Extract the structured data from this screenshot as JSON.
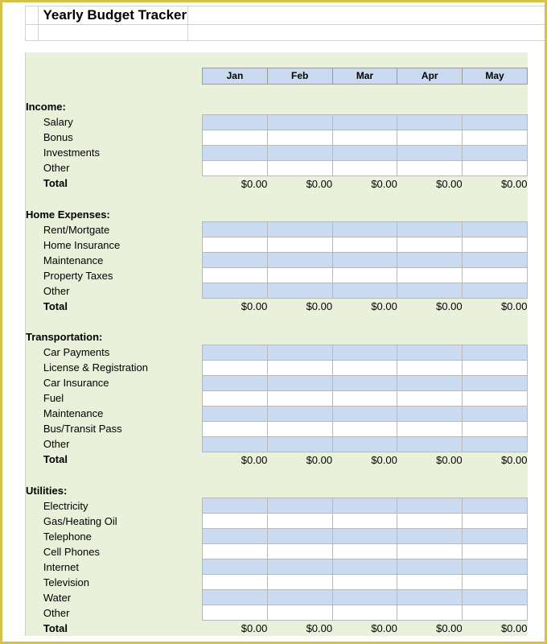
{
  "title": "Yearly Budget Tracker",
  "months": [
    "Jan",
    "Feb",
    "Mar",
    "Apr",
    "May"
  ],
  "colors": {
    "page_border": "#d6c24a",
    "sheet_bg": "#eaf1da",
    "header_cell": "#c9daf1",
    "data_cell_alt": "#c9daf1",
    "data_cell_white": "#ffffff",
    "grid_line": "#b8b8b8"
  },
  "sections": [
    {
      "name": "Income:",
      "rows": [
        "Salary",
        "Bonus",
        "Investments",
        "Other"
      ],
      "total_label": "Total",
      "totals": [
        "$0.00",
        "$0.00",
        "$0.00",
        "$0.00",
        "$0.00"
      ]
    },
    {
      "name": "Home Expenses:",
      "rows": [
        "Rent/Mortgate",
        "Home Insurance",
        "Maintenance",
        "Property Taxes",
        "Other"
      ],
      "total_label": "Total",
      "totals": [
        "$0.00",
        "$0.00",
        "$0.00",
        "$0.00",
        "$0.00"
      ]
    },
    {
      "name": "Transportation:",
      "rows": [
        "Car Payments",
        "License & Registration",
        "Car Insurance",
        "Fuel",
        "Maintenance",
        "Bus/Transit Pass",
        "Other"
      ],
      "total_label": "Total",
      "totals": [
        "$0.00",
        "$0.00",
        "$0.00",
        "$0.00",
        "$0.00"
      ]
    },
    {
      "name": "Utilities:",
      "rows": [
        "Electricity",
        "Gas/Heating Oil",
        "Telephone",
        "Cell Phones",
        "Internet",
        "Television",
        "Water",
        "Other"
      ],
      "total_label": "Total",
      "totals": [
        "$0.00",
        "$0.00",
        "$0.00",
        "$0.00",
        "$0.00"
      ]
    }
  ]
}
